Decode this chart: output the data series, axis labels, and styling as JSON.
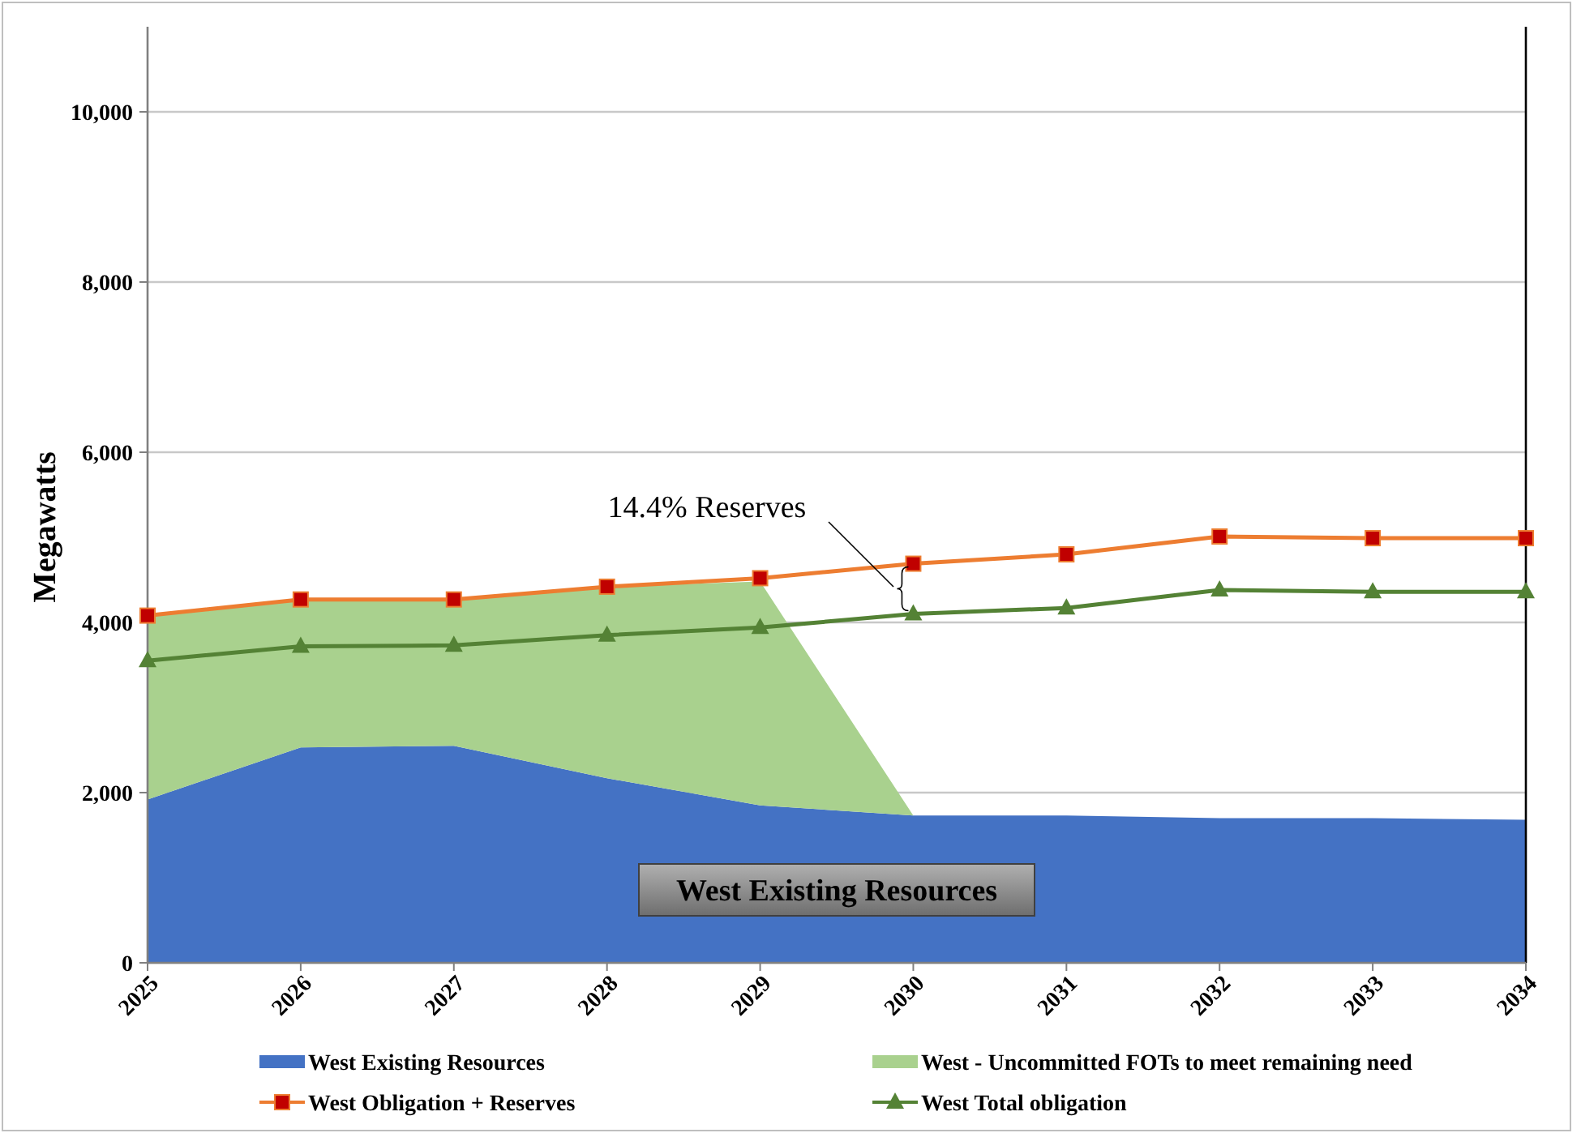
{
  "chart_data": {
    "type": "area",
    "stacked": true,
    "ylabel": "Megawatts",
    "categories": [
      "2025",
      "2026",
      "2027",
      "2028",
      "2029",
      "2030",
      "2031",
      "2032",
      "2033",
      "2034"
    ],
    "ylim": [
      0,
      11000
    ],
    "yticks": [
      0,
      {
        "value": 2000,
        "label": "2,000"
      },
      {
        "value": 4000,
        "label": "4,000"
      },
      {
        "value": 6000,
        "label": "6,000"
      },
      {
        "value": 8000,
        "label": "8,000"
      },
      {
        "value": 10000,
        "label": "10,000"
      }
    ],
    "grid": "y",
    "legend": "bottom",
    "series": [
      {
        "name": "West Existing Resources",
        "color": "#4472c4",
        "values": [
          1920,
          2530,
          2550,
          2170,
          1850,
          1730,
          1730,
          1700,
          1700,
          1680
        ]
      },
      {
        "name": "West - Uncommitted FOTs to meet remaining need",
        "color": "#a9d18e",
        "values": [
          2160,
          1740,
          1720,
          2250,
          2630,
          0,
          0,
          0,
          0,
          0
        ]
      },
      {
        "name": "West Obligation + Reserves",
        "type": "line",
        "color": "#ed7d31",
        "marker": "square",
        "values": [
          4080,
          4270,
          4270,
          4420,
          4520,
          4690,
          4800,
          5010,
          4990,
          4990
        ]
      },
      {
        "name": "West Total obligation",
        "type": "line",
        "color": "#548235",
        "marker": "triangle",
        "values": [
          3550,
          3720,
          3730,
          3850,
          3940,
          4100,
          4170,
          4380,
          4360,
          4360
        ]
      }
    ],
    "annotations": [
      "14.4% Reserves",
      "West Existing Resources"
    ]
  }
}
